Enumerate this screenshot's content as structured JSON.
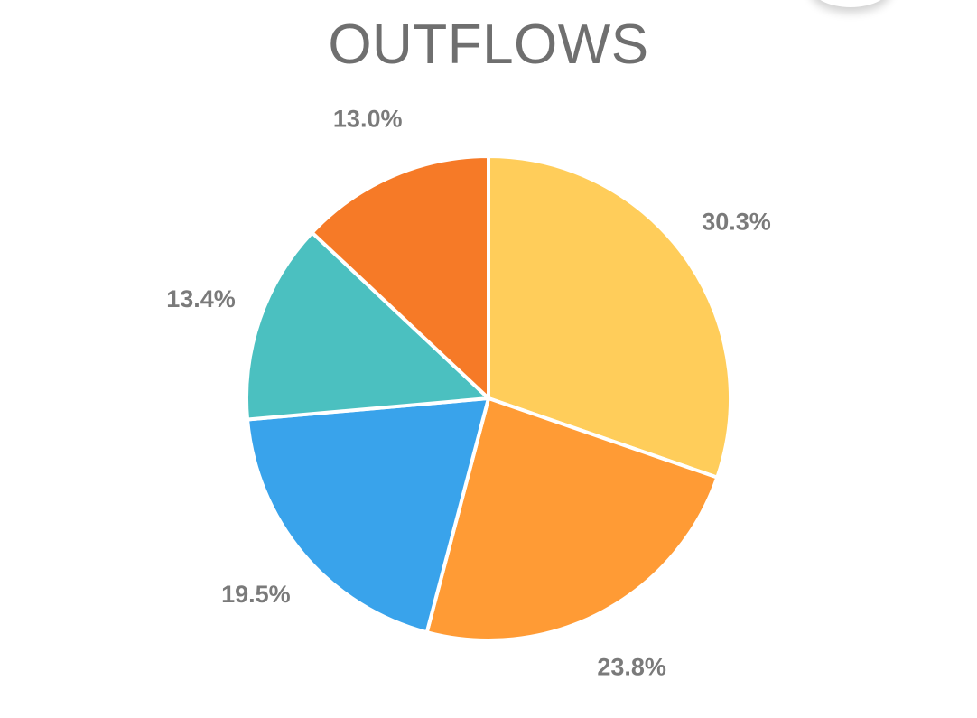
{
  "chart_data": {
    "type": "pie",
    "title": "OUTFLOWS",
    "slices": [
      {
        "label": "30.3%",
        "value": 30.3,
        "color": "#FFCD5A"
      },
      {
        "label": "23.8%",
        "value": 23.8,
        "color": "#FF9B35"
      },
      {
        "label": "19.5%",
        "value": 19.5,
        "color": "#39A3EB"
      },
      {
        "label": "13.4%",
        "value": 13.4,
        "color": "#4BC0C0"
      },
      {
        "label": "13.0%",
        "value": 13.0,
        "color": "#F67A27"
      }
    ],
    "start_angle_deg": 0,
    "direction": "clockwise",
    "legend": "none"
  }
}
